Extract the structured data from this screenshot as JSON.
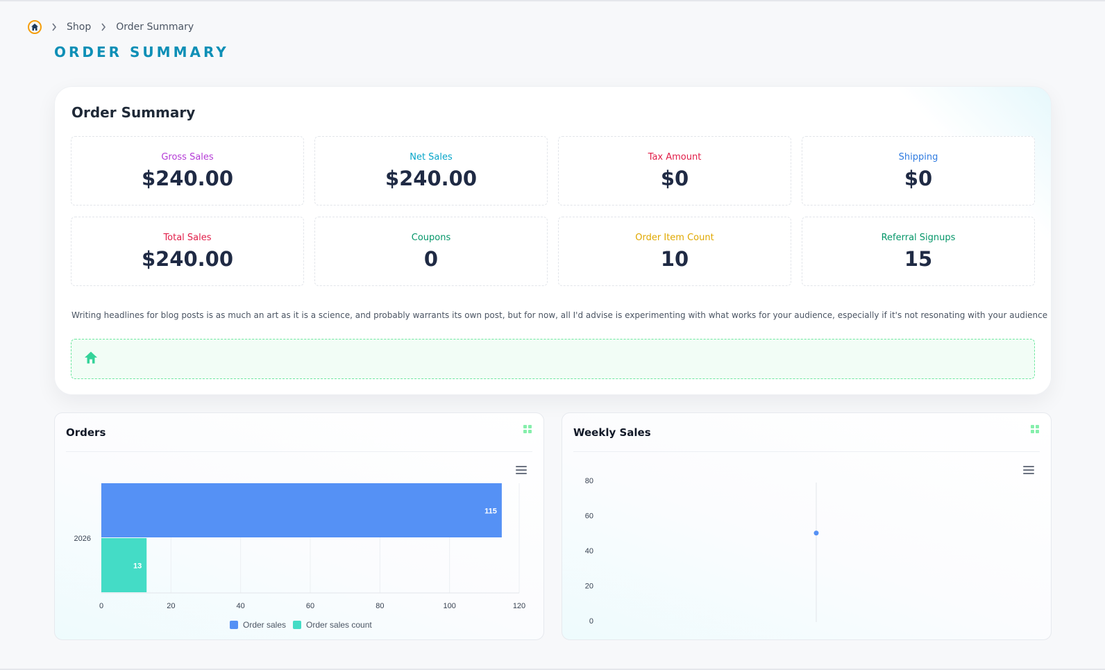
{
  "breadcrumb": {
    "items": [
      "Shop",
      "Order Summary"
    ]
  },
  "page_title": "ORDER SUMMARY",
  "summary": {
    "title": "Order Summary",
    "stats": [
      {
        "label": "Gross Sales",
        "value": "$240.00",
        "color": "#b43bd6"
      },
      {
        "label": "Net Sales",
        "value": "$240.00",
        "color": "#06a5c9"
      },
      {
        "label": "Tax Amount",
        "value": "$0",
        "color": "#e11d48"
      },
      {
        "label": "Shipping",
        "value": "$0",
        "color": "#2f7be0"
      },
      {
        "label": "Total Sales",
        "value": "$240.00",
        "color": "#e11d48"
      },
      {
        "label": "Coupons",
        "value": "0",
        "color": "#059669"
      },
      {
        "label": "Order Item Count",
        "value": "10",
        "color": "#e0a800"
      },
      {
        "label": "Referral Signups",
        "value": "15",
        "color": "#059669"
      }
    ],
    "description": "Writing headlines for blog posts is as much an art as it is a science, and probably warrants its own post, but for now, all I'd advise is experimenting with what works for your audience, especially if it's not resonating with your audience"
  },
  "colors": {
    "accent": "#0e8fb6",
    "series_blue": "#5591f5",
    "series_teal": "#44dcc6",
    "alert_green": "#34d399"
  },
  "icons": {
    "home": "home-icon",
    "chevron": "chevron-right-icon",
    "alert": "house-icon",
    "panel_menu": "grid-icon",
    "chart_menu": "hamburger-menu-icon"
  },
  "orders_panel": {
    "title": "Orders"
  },
  "weekly_panel": {
    "title": "Weekly Sales"
  },
  "chart_data": [
    {
      "type": "bar",
      "orientation": "horizontal",
      "categories": [
        "2026"
      ],
      "series": [
        {
          "name": "Order sales",
          "values": [
            115
          ],
          "color": "#5591f5"
        },
        {
          "name": "Order sales count",
          "values": [
            13
          ],
          "color": "#44dcc6"
        }
      ],
      "xticks": [
        "0",
        "20",
        "40",
        "60",
        "80",
        "100",
        "120"
      ],
      "xlim": [
        0,
        120
      ],
      "data_labels": true,
      "grid": true,
      "legend": "bottom-center"
    },
    {
      "type": "scatter",
      "points": [
        {
          "x": 0,
          "y": 50
        }
      ],
      "yticks": [
        "0",
        "20",
        "40",
        "60",
        "80"
      ],
      "ylim": [
        0,
        80
      ],
      "grid": false,
      "legend": "none"
    }
  ]
}
